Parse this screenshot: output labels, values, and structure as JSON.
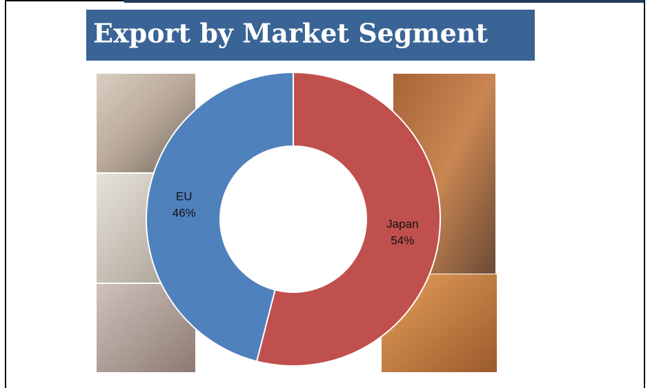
{
  "chart_data": {
    "type": "pie",
    "title": "Export by Market Segment",
    "categories": [
      "Japan",
      "EU"
    ],
    "values": [
      54,
      46
    ],
    "value_labels": [
      "54%",
      "46%"
    ],
    "colors": [
      "#c0504d",
      "#4f81bd"
    ],
    "donut": true
  }
}
